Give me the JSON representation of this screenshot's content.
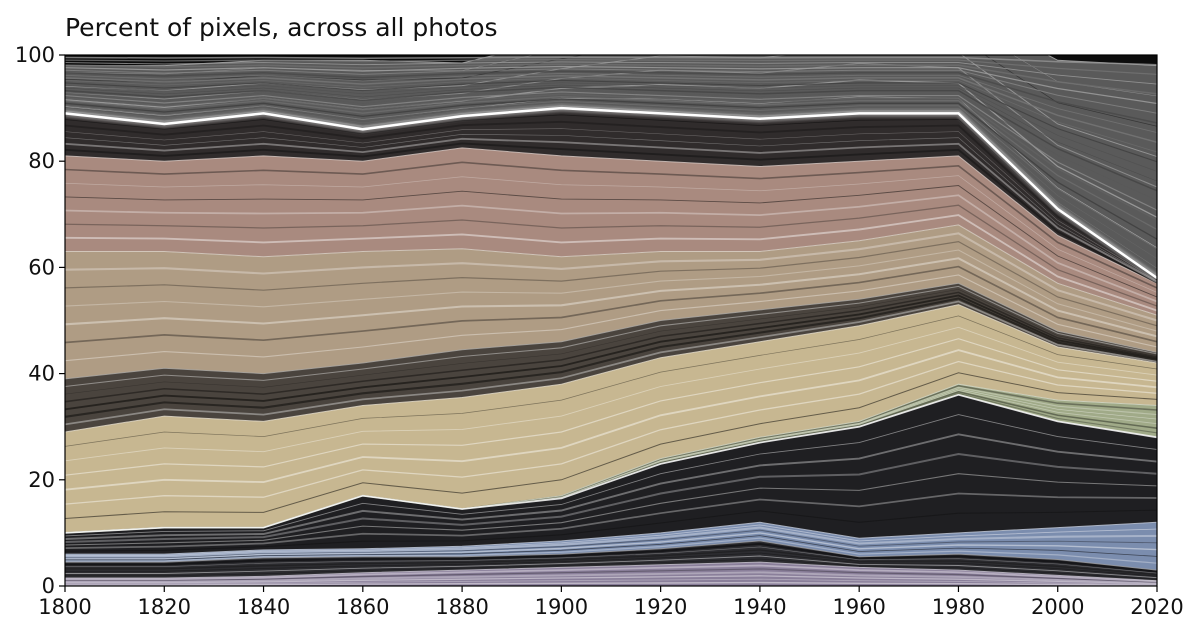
{
  "chart_data": {
    "type": "area",
    "title": "Percent of pixels, across all photos",
    "xlabel": "",
    "ylabel": "",
    "x": [
      1800,
      1820,
      1840,
      1860,
      1880,
      1900,
      1920,
      1940,
      1960,
      1980,
      2000,
      2020
    ],
    "xlim": [
      1800,
      2020
    ],
    "ylim": [
      0,
      100
    ],
    "xticks": [
      "1800",
      "1820",
      "1840",
      "1860",
      "1880",
      "1900",
      "1920",
      "1940",
      "1960",
      "1980",
      "2000",
      "2020"
    ],
    "yticks": [
      "0",
      "20",
      "40",
      "60",
      "80",
      "100"
    ],
    "grid": false,
    "legend": "none",
    "series": [
      {
        "color": "#8a7f9a",
        "values": [
          1.5,
          1.5,
          1.8,
          2.5,
          3.0,
          3.5,
          4.0,
          4.5,
          3.5,
          3.0,
          2.0,
          1.0
        ]
      },
      {
        "color": "#2c2c30",
        "values": [
          3.0,
          3.0,
          3.5,
          3.0,
          2.5,
          2.5,
          3.0,
          4.0,
          2.0,
          3.0,
          3.0,
          2.0
        ]
      },
      {
        "color": "#7b8dae",
        "values": [
          1.5,
          1.5,
          1.5,
          1.5,
          2.0,
          2.5,
          3.0,
          3.5,
          3.5,
          4.0,
          6.0,
          9.0
        ]
      },
      {
        "color": "#1f1f22",
        "values": [
          4.0,
          5.0,
          4.2,
          10.0,
          7.0,
          8.0,
          13.0,
          15.0,
          21.0,
          26.0,
          20.0,
          16.0
        ]
      },
      {
        "color": "#a0aa88",
        "values": [
          0.0,
          0.0,
          0.0,
          0.0,
          0.0,
          0.5,
          1.0,
          1.0,
          1.0,
          2.0,
          4.0,
          6.0
        ]
      },
      {
        "color": "#c7b791",
        "values": [
          19.0,
          21.0,
          20.0,
          17.0,
          21.0,
          21.0,
          19.0,
          18.0,
          18.0,
          15.0,
          10.0,
          8.0
        ]
      },
      {
        "color": "#4a443e",
        "values": [
          10.0,
          9.0,
          9.0,
          8.0,
          9.0,
          8.0,
          7.0,
          6.0,
          5.0,
          4.0,
          3.0,
          2.0
        ]
      },
      {
        "color": "#af9c84",
        "values": [
          24.0,
          22.0,
          22.0,
          21.0,
          19.0,
          16.0,
          13.0,
          11.0,
          11.0,
          11.0,
          9.0,
          7.0
        ]
      },
      {
        "color": "#a98a7f",
        "values": [
          18.0,
          17.0,
          19.0,
          17.0,
          19.0,
          19.0,
          17.0,
          16.0,
          15.0,
          13.0,
          9.0,
          6.0
        ]
      },
      {
        "color": "#302c2c",
        "values": [
          8.0,
          7.0,
          8.0,
          6.0,
          6.0,
          9.0,
          9.0,
          9.0,
          9.0,
          8.0,
          5.0,
          1.0
        ]
      },
      {
        "color": "#5a5a5a",
        "values": [
          9.0,
          11.0,
          10.0,
          13.0,
          10.0,
          13.0,
          19.0,
          20.0,
          22.0,
          20.0,
          28.0,
          40.0
        ]
      }
    ]
  }
}
